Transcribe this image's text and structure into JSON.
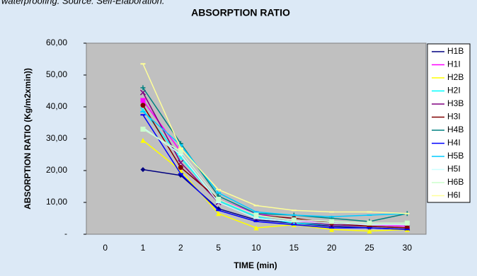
{
  "caption": "waterproofing. Source: Self-Elaboration.",
  "chart_data": {
    "type": "line",
    "title": "ABSORPTION RATIO",
    "x_label": "TIME (min)",
    "y_label": "ABSORPTION RATIO (Kg/m2xmin))",
    "categories": [
      "0",
      "1",
      "2",
      "5",
      "10",
      "15",
      "20",
      "25",
      "30"
    ],
    "ylim": [
      0,
      60
    ],
    "yticks": [
      {
        "value": 0,
        "label": "-"
      },
      {
        "value": 10,
        "label": "10,00"
      },
      {
        "value": 20,
        "label": "20,00"
      },
      {
        "value": 30,
        "label": "30,00"
      },
      {
        "value": 40,
        "label": "40,00"
      },
      {
        "value": 50,
        "label": "50,00"
      },
      {
        "value": 60,
        "label": "60,00"
      }
    ],
    "legend": "right",
    "series": [
      {
        "name": "H1B",
        "color": "#000080",
        "marker": "diamond",
        "values": [
          null,
          20.3,
          18.5,
          8,
          4.5,
          3.5,
          2.5,
          2,
          1.5
        ]
      },
      {
        "name": "H1I",
        "color": "#ff00ff",
        "marker": "square",
        "values": [
          null,
          42,
          26,
          11,
          6.5,
          4.5,
          3.5,
          3,
          2.5
        ]
      },
      {
        "name": "H2B",
        "color": "#ffff00",
        "marker": "triangle",
        "values": [
          null,
          29.5,
          20,
          6.5,
          2,
          3,
          1.5,
          1,
          1.5
        ]
      },
      {
        "name": "H2I",
        "color": "#00ffff",
        "marker": "x",
        "values": [
          null,
          39,
          24,
          10.5,
          5.5,
          3.5,
          3,
          2.5,
          2
        ]
      },
      {
        "name": "H3B",
        "color": "#800080",
        "marker": "x",
        "values": [
          null,
          44.5,
          22.5,
          10,
          5,
          4,
          3,
          2.5,
          2
        ]
      },
      {
        "name": "H3I",
        "color": "#800000",
        "marker": "circle",
        "values": [
          null,
          40.5,
          21,
          11,
          6,
          5,
          3.5,
          2.5,
          2
        ]
      },
      {
        "name": "H4B",
        "color": "#008080",
        "marker": "plus",
        "values": [
          null,
          46,
          28.5,
          12,
          6.5,
          6,
          5,
          4,
          6.5
        ]
      },
      {
        "name": "H4I",
        "color": "#0000ff",
        "marker": "dash",
        "values": [
          null,
          37.5,
          19,
          7.5,
          4,
          3,
          2,
          2,
          1.5
        ]
      },
      {
        "name": "H5B",
        "color": "#00ccff",
        "marker": "dash",
        "values": [
          null,
          38.5,
          28,
          13,
          7,
          6,
          5.5,
          6,
          6.5
        ]
      },
      {
        "name": "H5I",
        "color": "#ccffff",
        "marker": "dash",
        "values": [
          null,
          33.5,
          25,
          10,
          5,
          4,
          3.5,
          3,
          3
        ]
      },
      {
        "name": "H6B",
        "color": "#ccffcc",
        "marker": "square",
        "values": [
          null,
          33,
          26,
          11,
          6,
          4.5,
          4,
          3.5,
          3.5
        ]
      },
      {
        "name": "H6I",
        "color": "#ffff99",
        "marker": "dash",
        "values": [
          null,
          53.5,
          27,
          14,
          9,
          7.5,
          7,
          7,
          6.5
        ]
      }
    ]
  }
}
